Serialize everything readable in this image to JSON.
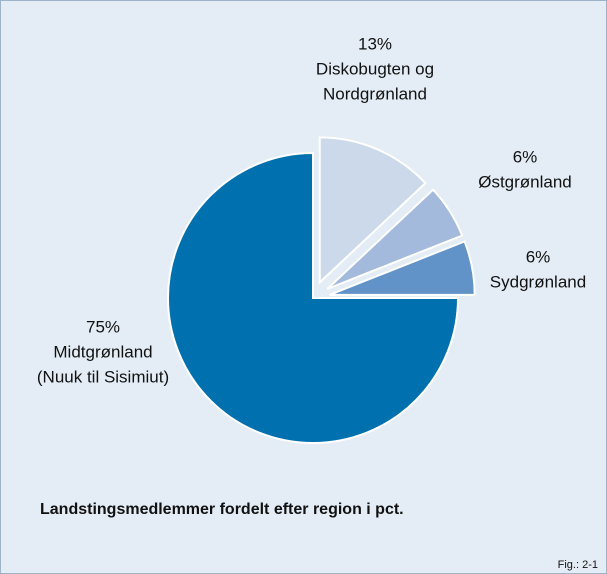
{
  "chart_data": {
    "type": "pie",
    "title": "Landstingsmedlemmer fordelt efter region i pct.",
    "figure_label": "Fig.: 2-1",
    "categories": [
      [
        "Diskobugten og",
        "Nordgrønland"
      ],
      [
        "Østgrønland"
      ],
      [
        "Sydgrønland"
      ],
      [
        "Midtgrønland",
        "(Nuuk til Sisimiut)"
      ]
    ],
    "values": [
      13,
      6,
      6,
      75
    ],
    "value_labels": [
      "13%",
      "6%",
      "6%",
      "75%"
    ],
    "colors": [
      "#ccd9ea",
      "#a3badd",
      "#6193c8",
      "#0070ae"
    ],
    "explode": [
      true,
      true,
      true,
      false
    ]
  }
}
